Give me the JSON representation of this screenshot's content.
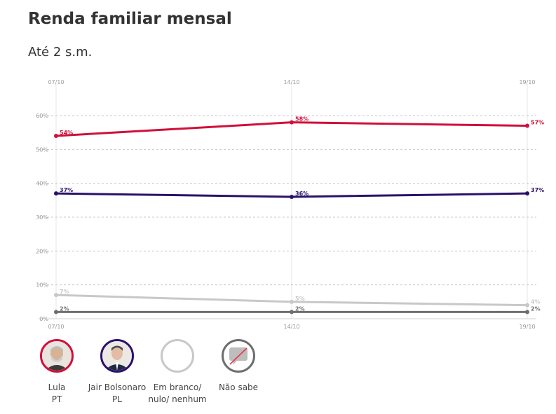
{
  "title": "Renda familiar mensal",
  "subtitle": "Até 2 s.m.",
  "chart_data": {
    "type": "line",
    "x": [
      "07/10",
      "14/10",
      "19/10"
    ],
    "yticks": [
      "0%",
      "10%",
      "20%",
      "30%",
      "40%",
      "50%",
      "60%"
    ],
    "ylim": [
      0,
      60
    ],
    "grid": true,
    "series": [
      {
        "name": "Lula",
        "color": "#d0103a",
        "values": [
          54,
          58,
          57
        ],
        "labels": [
          "54%",
          "58%",
          "57%"
        ]
      },
      {
        "name": "Jair Bolsonaro",
        "color": "#2b1069",
        "values": [
          37,
          36,
          37
        ],
        "labels": [
          "37%",
          "36%",
          "37%"
        ]
      },
      {
        "name": "Em branco/ nulo/ nenhum",
        "color": "#c8c8c8",
        "values": [
          7,
          5,
          4
        ],
        "labels": [
          "7%",
          "5%",
          "4%"
        ]
      },
      {
        "name": "Não sabe",
        "color": "#6e6e6e",
        "values": [
          2,
          2,
          2
        ],
        "labels": [
          "2%",
          "2%",
          "2%"
        ]
      }
    ]
  },
  "legend": [
    {
      "line1": "Lula",
      "line2": "PT",
      "color": "#d0103a",
      "icon": "lula-avatar-icon"
    },
    {
      "line1": "Jair Bolsonaro",
      "line2": "PL",
      "color": "#2b1069",
      "icon": "bolsonaro-avatar-icon"
    },
    {
      "line1": "Em branco/",
      "line2": "nulo/ nenhum",
      "color": "#c8c8c8",
      "icon": "empty-circle-icon"
    },
    {
      "line1": "Não sabe",
      "line2": "",
      "color": "#6e6e6e",
      "icon": "speech-bubble-crossed-icon"
    }
  ]
}
